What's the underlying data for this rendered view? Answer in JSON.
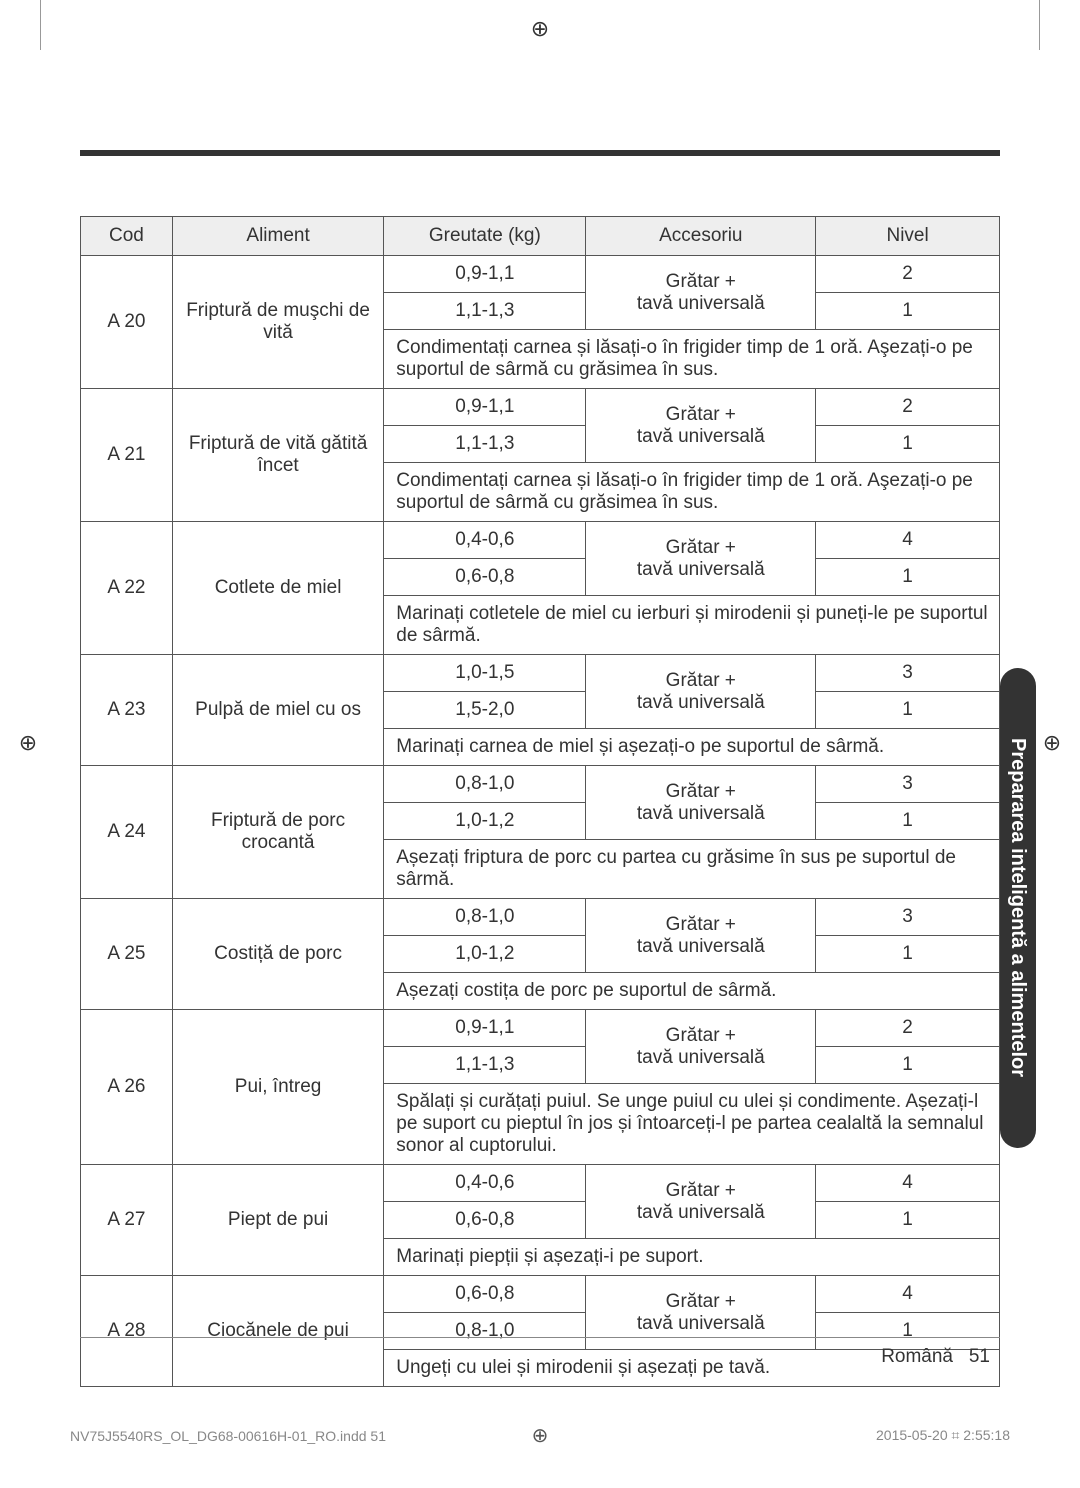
{
  "headers": {
    "code": "Cod",
    "food": "Aliment",
    "weight": "Greutate (kg)",
    "accessory": "Accesoriu",
    "level": "Nivel"
  },
  "rows": [
    {
      "code": "A 20",
      "food": "Friptură de muşchi de vită",
      "variants": [
        {
          "weight": "0,9-1,1",
          "accessory": "Grătar +",
          "level": "2"
        },
        {
          "weight": "1,1-1,3",
          "accessory": "tavă universală",
          "level": "1"
        }
      ],
      "instruction": "Condimentați carnea și lăsați-o în frigider timp de 1 oră. Aşezați-o pe suportul de sârmă cu grăsimea în sus."
    },
    {
      "code": "A 21",
      "food": "Friptură de vită gătită încet",
      "variants": [
        {
          "weight": "0,9-1,1",
          "accessory": "Grătar +",
          "level": "2"
        },
        {
          "weight": "1,1-1,3",
          "accessory": "tavă universală",
          "level": "1"
        }
      ],
      "instruction": "Condimentați carnea și lăsați-o în frigider timp de 1 oră. Aşezați-o pe suportul de sârmă cu grăsimea în sus."
    },
    {
      "code": "A 22",
      "food": "Cotlete de miel",
      "variants": [
        {
          "weight": "0,4-0,6",
          "accessory": "Grătar +",
          "level": "4"
        },
        {
          "weight": "0,6-0,8",
          "accessory": "tavă universală",
          "level": "1"
        }
      ],
      "instruction": "Marinați cotletele de miel cu ierburi și mirodenii și puneți-le pe suportul de sârmă."
    },
    {
      "code": "A 23",
      "food": "Pulpă de miel cu os",
      "variants": [
        {
          "weight": "1,0-1,5",
          "accessory": "Grătar +",
          "level": "3"
        },
        {
          "weight": "1,5-2,0",
          "accessory": "tavă universală",
          "level": "1"
        }
      ],
      "instruction": "Marinați carnea de miel și așezați-o pe suportul de sârmă."
    },
    {
      "code": "A 24",
      "food": "Friptură de porc crocantă",
      "variants": [
        {
          "weight": "0,8-1,0",
          "accessory": "Grătar +",
          "level": "3"
        },
        {
          "weight": "1,0-1,2",
          "accessory": "tavă universală",
          "level": "1"
        }
      ],
      "instruction": "Așezați friptura de porc cu partea cu grăsime în sus pe suportul de sârmă."
    },
    {
      "code": "A 25",
      "food": "Costiță de porc",
      "variants": [
        {
          "weight": "0,8-1,0",
          "accessory": "Grătar +",
          "level": "3"
        },
        {
          "weight": "1,0-1,2",
          "accessory": "tavă universală",
          "level": "1"
        }
      ],
      "instruction": "Așezați costița de porc pe suportul de sârmă."
    },
    {
      "code": "A 26",
      "food": "Pui, întreg",
      "variants": [
        {
          "weight": "0,9-1,1",
          "accessory": "Grătar +",
          "level": "2"
        },
        {
          "weight": "1,1-1,3",
          "accessory": "tavă universală",
          "level": "1"
        }
      ],
      "instruction": "Spălați și curățați puiul. Se unge puiul cu ulei și condimente. Așezați-l pe suport cu pieptul în jos și întoarceți-l pe partea cealaltă la semnalul sonor al cuptorului."
    },
    {
      "code": "A 27",
      "food": "Piept de pui",
      "variants": [
        {
          "weight": "0,4-0,6",
          "accessory": "Grătar +",
          "level": "4"
        },
        {
          "weight": "0,6-0,8",
          "accessory": "tavă universală",
          "level": "1"
        }
      ],
      "instruction": "Marinați piepții și așezați-i pe suport."
    },
    {
      "code": "A 28",
      "food": "Ciocănele de pui",
      "variants": [
        {
          "weight": "0,6-0,8",
          "accessory": "Grătar +",
          "level": "4"
        },
        {
          "weight": "0,8-1,0",
          "accessory": "tavă universală",
          "level": "1"
        }
      ],
      "instruction": "Ungeți cu ulei și mirodenii și așezați pe tavă."
    }
  ],
  "side_tab": "Prepararea inteligentă a alimentelor",
  "footer": {
    "lang": "Română",
    "page": "51"
  },
  "print": {
    "left": "NV75J5540RS_OL_DG68-00616H-01_RO.indd   51",
    "right": "2015-05-20   ⌗ 2:55:18"
  },
  "colors": {
    "header_bg": "#eeeeee",
    "border": "#555555",
    "text": "#333333",
    "side_bg": "#333333"
  }
}
